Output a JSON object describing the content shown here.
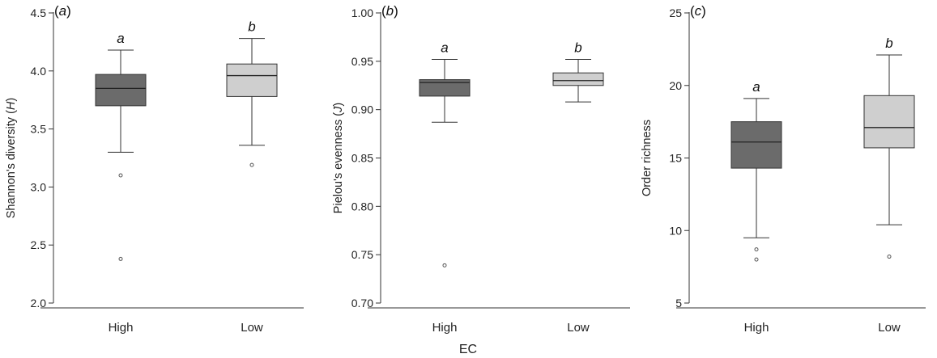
{
  "figure": {
    "xlabel_shared": "EC"
  },
  "chart_data": [
    {
      "type": "box",
      "panel_label": "(a)",
      "panel_letter": "a",
      "ylabel": "Shannon's diversity (H)",
      "ylabel_main": "Shannon's diversity (",
      "ylabel_italic": "H",
      "ylabel_end": ")",
      "ylim": [
        2.0,
        4.5
      ],
      "yticks": [
        2.0,
        2.5,
        3.0,
        3.5,
        4.0,
        4.5
      ],
      "ytick_labels": [
        "2.0",
        "2.5",
        "3.0",
        "3.5",
        "4.0",
        "4.5"
      ],
      "categories": [
        "High",
        "Low"
      ],
      "boxes": [
        {
          "category": "High",
          "min": 3.3,
          "q1": 3.7,
          "median": 3.85,
          "q3": 3.97,
          "max": 4.18,
          "outliers": [
            3.1,
            2.38
          ],
          "color": "#6b6b6b",
          "letter": "a"
        },
        {
          "category": "Low",
          "min": 3.36,
          "q1": 3.78,
          "median": 3.96,
          "q3": 4.06,
          "max": 4.28,
          "outliers": [
            3.19
          ],
          "color": "#cfcfcf",
          "letter": "b"
        }
      ]
    },
    {
      "type": "box",
      "panel_label": "(b)",
      "panel_letter": "b",
      "ylabel": "Pielou's evenness (J)",
      "ylabel_main": "Pielou's evenness (",
      "ylabel_italic": "J",
      "ylabel_end": ")",
      "ylim": [
        0.7,
        1.0
      ],
      "yticks": [
        0.7,
        0.75,
        0.8,
        0.85,
        0.9,
        0.95,
        1.0
      ],
      "ytick_labels": [
        "0.70",
        "0.75",
        "0.80",
        "0.85",
        "0.90",
        "0.95",
        "1.00"
      ],
      "categories": [
        "High",
        "Low"
      ],
      "boxes": [
        {
          "category": "High",
          "min": 0.887,
          "q1": 0.914,
          "median": 0.928,
          "q3": 0.931,
          "max": 0.952,
          "outliers": [
            0.739
          ],
          "color": "#6b6b6b",
          "letter": "a"
        },
        {
          "category": "Low",
          "min": 0.908,
          "q1": 0.925,
          "median": 0.93,
          "q3": 0.938,
          "max": 0.952,
          "outliers": [],
          "color": "#cfcfcf",
          "letter": "b"
        }
      ]
    },
    {
      "type": "box",
      "panel_label": "(c)",
      "panel_letter": "c",
      "ylabel": "Order richness",
      "ylabel_main": "Order richness",
      "ylabel_italic": "",
      "ylabel_end": "",
      "ylim": [
        5,
        25
      ],
      "yticks": [
        5,
        10,
        15,
        20,
        25
      ],
      "ytick_labels": [
        "5",
        "10",
        "15",
        "20",
        "25"
      ],
      "categories": [
        "High",
        "Low"
      ],
      "boxes": [
        {
          "category": "High",
          "min": 9.5,
          "q1": 14.3,
          "median": 16.1,
          "q3": 17.5,
          "max": 19.1,
          "outliers": [
            8.7,
            8.0
          ],
          "color": "#6b6b6b",
          "letter": "a"
        },
        {
          "category": "Low",
          "min": 10.4,
          "q1": 15.7,
          "median": 17.1,
          "q3": 19.3,
          "max": 22.1,
          "outliers": [
            8.2
          ],
          "color": "#cfcfcf",
          "letter": "b"
        }
      ]
    }
  ]
}
